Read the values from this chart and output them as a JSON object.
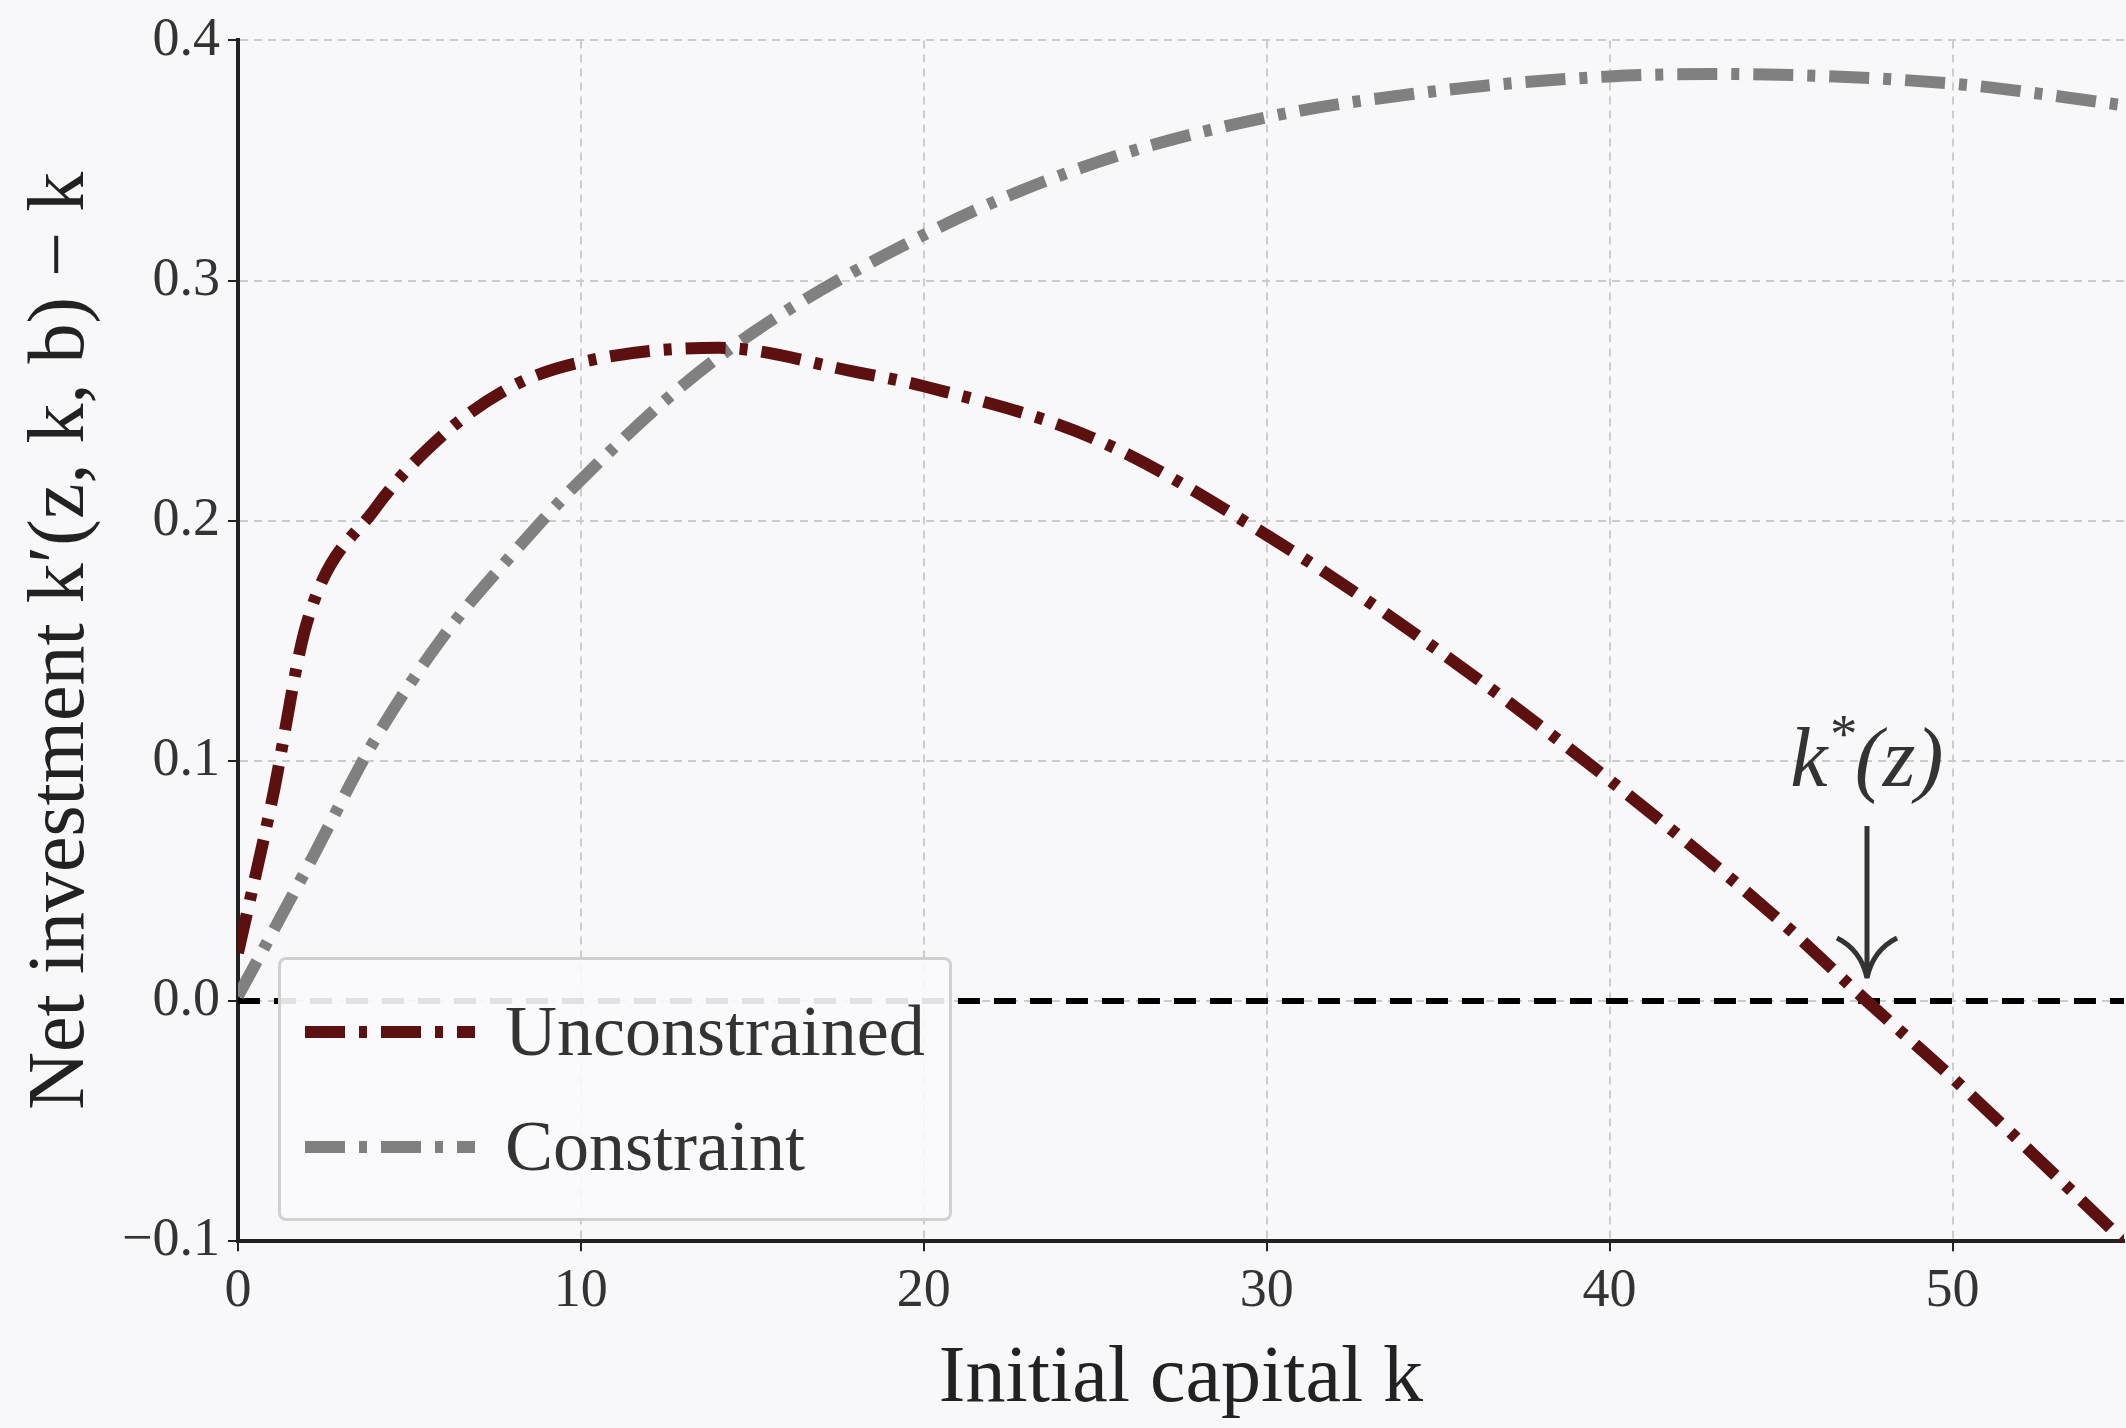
{
  "chart_data": {
    "type": "line",
    "xlabel": "Initial capital k",
    "ylabel": "Net investment k′(z, k, b) − k",
    "xlim": [
      0,
      55
    ],
    "xticks": [
      0,
      10,
      20,
      30,
      40,
      50
    ],
    "ylim": [
      -0.1,
      0.4
    ],
    "yticks": [
      {
        "value": -0.1,
        "label": "−0.1"
      },
      {
        "value": 0,
        "label": "0.0"
      },
      {
        "value": 0.1,
        "label": "0.1"
      },
      {
        "value": 0.2,
        "label": "0.2"
      },
      {
        "value": 0.3,
        "label": "0.3"
      },
      {
        "value": 0.4,
        "label": "0.4"
      }
    ],
    "grid": true,
    "legend": "bottom left",
    "marker": "none",
    "line_style": "dashed",
    "series": [
      {
        "name": "Unconstrained",
        "color": "#5c1010",
        "x": [
          0,
          1,
          2,
          4,
          6,
          8,
          10,
          14,
          18,
          20,
          25,
          30,
          35,
          40,
          45,
          47.5,
          50,
          55
        ],
        "values": [
          0.02,
          0.084,
          0.157,
          0.205,
          0.236,
          0.256,
          0.266,
          0.272,
          0.262,
          0.256,
          0.234,
          0.194,
          0.146,
          0.092,
          0.033,
          0,
          -0.032,
          -0.1
        ]
      },
      {
        "name": "Constraint",
        "color": "#808080",
        "x": [
          0,
          2,
          4,
          6,
          8,
          10,
          14,
          20,
          25,
          30,
          35,
          40,
          43,
          50,
          55
        ],
        "values": [
          0.002,
          0.055,
          0.109,
          0.152,
          0.186,
          0.217,
          0.268,
          0.319,
          0.349,
          0.368,
          0.379,
          0.385,
          0.386,
          0.382,
          0.373
        ]
      }
    ],
    "ref_lines": [
      {
        "axis": "y",
        "value": 0,
        "color": "#000000",
        "line_style": "dashed"
      }
    ],
    "annotations": [
      {
        "text": "k$^{*}$(z)",
        "x": 47.5,
        "y": 0
      }
    ]
  }
}
